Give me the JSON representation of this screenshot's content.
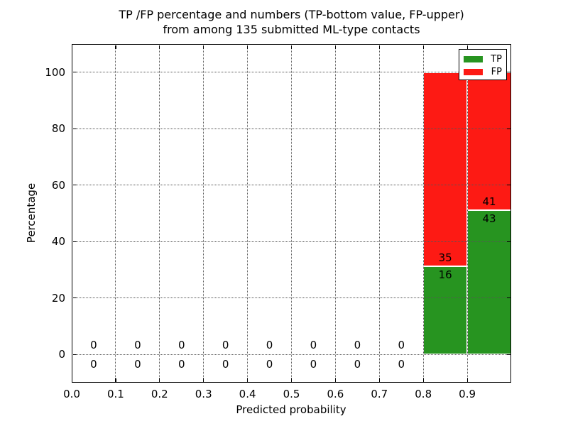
{
  "figure": {
    "title_line1": "TP /FP percentage and numbers (TP-bottom value, FP-upper)",
    "title_line2": "from among 135 submitted ML-type contacts"
  },
  "chart_data": {
    "type": "bar",
    "stacking": "percentage-stacked",
    "title": "TP /FP percentage and numbers (TP-bottom value, FP-upper)\nfrom among 135 submitted ML-type contacts",
    "xlabel": "Predicted probability",
    "ylabel": "Percentage",
    "total_contacts": 135,
    "xlim": [
      0.0,
      1.0
    ],
    "ylim": [
      -10,
      110
    ],
    "x_tick_values": [
      0.0,
      0.1,
      0.2,
      0.3,
      0.4,
      0.5,
      0.6,
      0.7,
      0.8,
      0.9
    ],
    "x_tick_labels": [
      "0.0",
      "0.1",
      "0.2",
      "0.3",
      "0.4",
      "0.5",
      "0.6",
      "0.7",
      "0.8",
      "0.9"
    ],
    "y_tick_values": [
      0,
      20,
      40,
      60,
      80,
      100
    ],
    "y_tick_labels": [
      "0",
      "20",
      "40",
      "60",
      "80",
      "100"
    ],
    "grid": true,
    "grid_style": "dotted",
    "legend_position": "upper right",
    "legend": [
      {
        "label": "TP",
        "key": "tp"
      },
      {
        "label": "FP",
        "key": "fp"
      }
    ],
    "series_colors": {
      "tp": "#279420",
      "fp": "#fd1a14"
    },
    "bar_edge_color": "#ffffff",
    "bins": [
      {
        "range": [
          0.0,
          0.1
        ],
        "tp": 0,
        "fp": 0
      },
      {
        "range": [
          0.1,
          0.2
        ],
        "tp": 0,
        "fp": 0
      },
      {
        "range": [
          0.2,
          0.3
        ],
        "tp": 0,
        "fp": 0
      },
      {
        "range": [
          0.3,
          0.4
        ],
        "tp": 0,
        "fp": 0
      },
      {
        "range": [
          0.4,
          0.5
        ],
        "tp": 0,
        "fp": 0
      },
      {
        "range": [
          0.5,
          0.6
        ],
        "tp": 0,
        "fp": 0
      },
      {
        "range": [
          0.6,
          0.7
        ],
        "tp": 0,
        "fp": 0
      },
      {
        "range": [
          0.7,
          0.8
        ],
        "tp": 0,
        "fp": 0
      },
      {
        "range": [
          0.8,
          0.9
        ],
        "tp": 16,
        "fp": 35
      },
      {
        "range": [
          0.9,
          1.0
        ],
        "tp": 43,
        "fp": 41
      }
    ]
  }
}
